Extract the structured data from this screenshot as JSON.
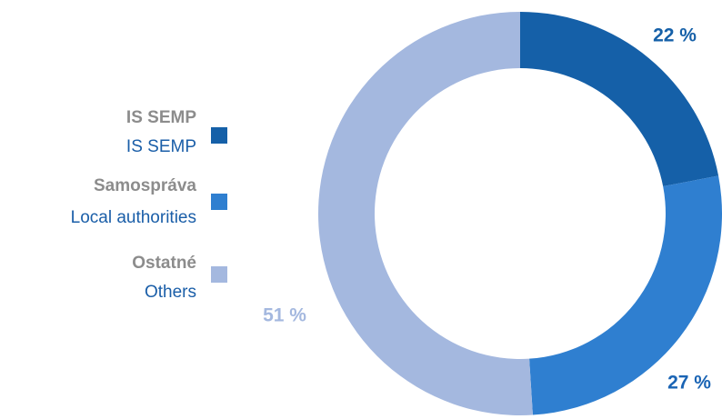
{
  "chart_data": {
    "type": "donut",
    "categories": [
      "IS SEMP",
      "Samospráva",
      "Ostatné"
    ],
    "categories_en": [
      "IS SEMP",
      "Local authorities",
      "Others"
    ],
    "values": [
      22,
      27,
      51
    ],
    "value_labels": [
      "22 %",
      "27 %",
      "51 %"
    ],
    "colors": [
      "#1560a8",
      "#2f7fd0",
      "#a4b8df"
    ]
  }
}
